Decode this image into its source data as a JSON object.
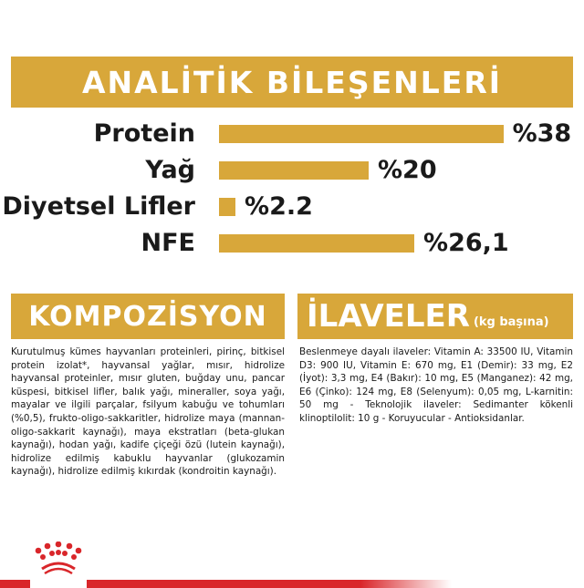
{
  "title": "ANALİTİK BİLEŞENLERİ",
  "analytics": [
    {
      "label": "Protein",
      "value": 38,
      "display": "%38"
    },
    {
      "label": "Yağ",
      "value": 20,
      "display": "%20"
    },
    {
      "label": "Diyetsel Lifler",
      "value": 2.2,
      "display": "%2.2"
    },
    {
      "label": "NFE",
      "value": 26.1,
      "display": "%26,1"
    }
  ],
  "composition": {
    "heading": "KOMPOZİSYON",
    "text": "Kurutulmuş kümes hayvanları proteinleri, pirinç, bitkisel protein izolat*, hayvansal yağlar, mısır, hidrolize hayvansal proteinler, mısır gluten, buğday unu, pancar küspesi, bitkisel lifler, balık yağı, mineraller, soya yağı, mayalar ve ilgili parçalar, fsilyum kabuğu ve tohumları (%0,5), frukto-oligo-sakkaritler, hidrolize maya (mannan-oligo-sakkarit kaynağı), maya ekstratları (beta-glukan kaynağı), hodan yağı, kadife çiçeği özü (lutein kaynağı), hidrolize edilmiş kabuklu hayvanlar (glukozamin kaynağı), hidrolize edilmiş kıkırdak (kondroitin kaynağı)."
  },
  "additives": {
    "heading": "İLAVELER",
    "subheading": "(kg başına)",
    "text": "Beslenmeye dayalı ilaveler: Vitamin A: 33500 IU, Vitamin D3: 900 IU, Vitamin E: 670 mg, E1 (Demir): 33 mg, E2 (İyot): 3,3 mg, E4 (Bakır): 10 mg, E5 (Manganez): 42 mg, E6 (Çinko): 124 mg, E8 (Selenyum): 0,05 mg, L-karnitin: 50 mg - Teknolojik ilaveler: Sedimanter kökenli klinoptilolit: 10 g - Koruyucular - Antioksidanlar."
  },
  "colors": {
    "accent": "#D8A73A",
    "brand_red": "#D9262A"
  },
  "logo": "royal-canin-crown-icon"
}
